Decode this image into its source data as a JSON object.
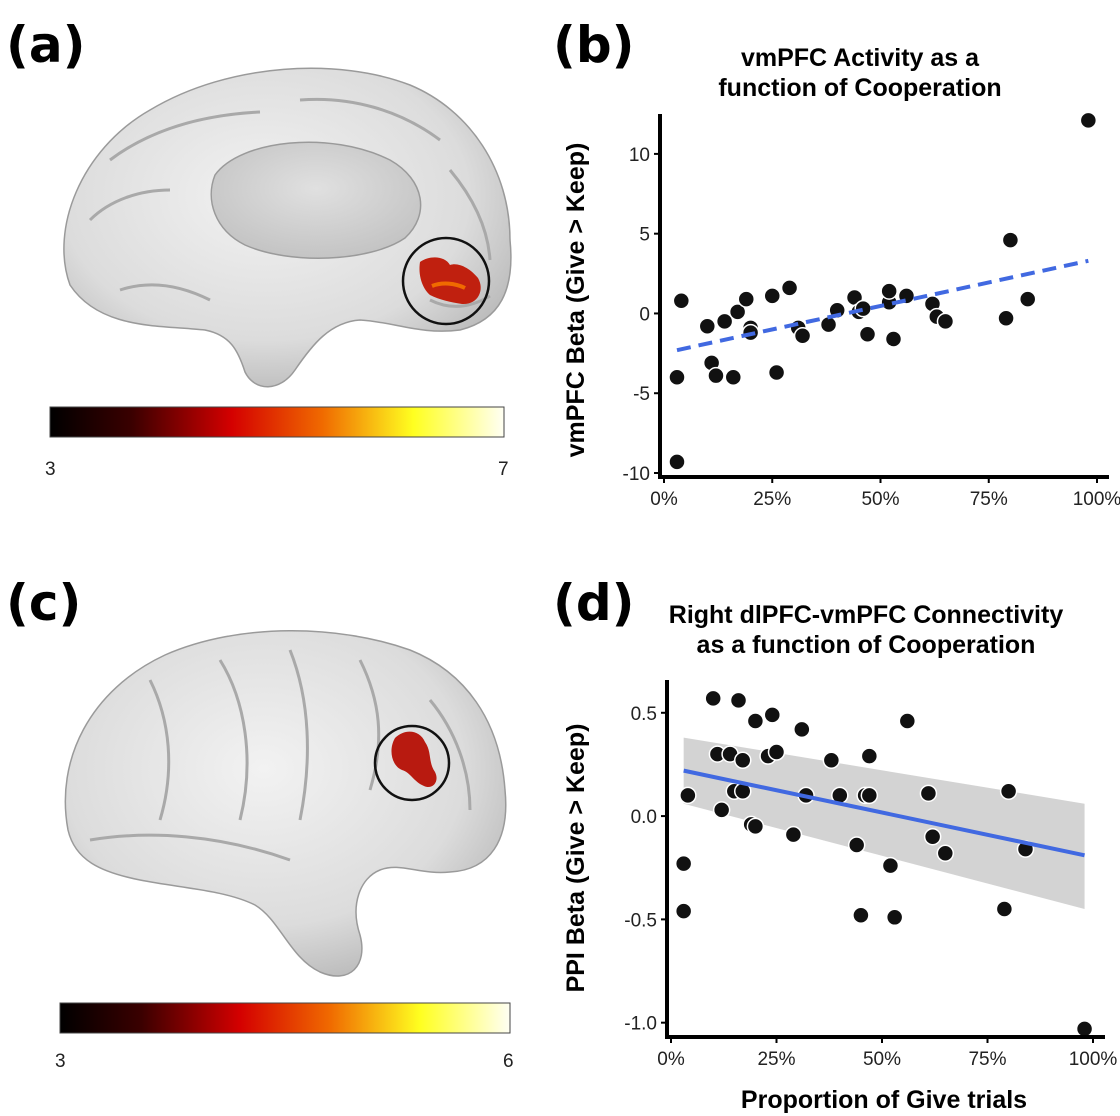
{
  "panels": {
    "a": {
      "letter": "(a)"
    },
    "b": {
      "letter": "(b)"
    },
    "c": {
      "letter": "(c)"
    },
    "d": {
      "letter": "(d)"
    }
  },
  "colorbars": [
    {
      "min_label": "3",
      "max_label": "7"
    },
    {
      "min_label": "3",
      "max_label": "6"
    }
  ],
  "colors": {
    "point_fill": "#111111",
    "point_stroke": "#ffffff",
    "trend_line": "#4169e1",
    "confidence_band": "#c8c8c8",
    "activation": "#c0200f"
  },
  "chart_data": [
    {
      "type": "scatter",
      "title_lines": [
        "vmPFC Activity as a",
        "function of Cooperation"
      ],
      "xlabel": "",
      "ylabel": "vmPFC Beta (Give > Keep)",
      "xlim": [
        0,
        1
      ],
      "ylim": [
        -10,
        12
      ],
      "xticks": [
        0,
        0.25,
        0.5,
        0.75,
        1.0
      ],
      "xtick_labels": [
        "0%",
        "25%",
        "50%",
        "75%",
        "100%"
      ],
      "yticks": [
        -10,
        -5,
        0,
        5,
        10
      ],
      "ytick_labels": [
        "-10",
        "-5",
        "0",
        "5",
        "10"
      ],
      "trend": {
        "style": "dashed",
        "x": [
          0.03,
          0.98
        ],
        "y": [
          -2.3,
          3.3
        ],
        "ci": false
      },
      "points": {
        "x": [
          0.03,
          0.04,
          0.03,
          0.1,
          0.11,
          0.12,
          0.14,
          0.16,
          0.17,
          0.19,
          0.2,
          0.2,
          0.25,
          0.26,
          0.29,
          0.31,
          0.32,
          0.38,
          0.4,
          0.44,
          0.45,
          0.46,
          0.47,
          0.52,
          0.52,
          0.53,
          0.56,
          0.62,
          0.63,
          0.65,
          0.79,
          0.8,
          0.84,
          0.98
        ],
        "y": [
          -4.0,
          0.8,
          -9.3,
          -0.8,
          -3.1,
          -3.9,
          -0.5,
          -4.0,
          0.1,
          0.9,
          -0.9,
          -1.2,
          1.1,
          -3.7,
          1.6,
          -0.9,
          -1.4,
          -0.7,
          0.2,
          1.0,
          0.1,
          0.3,
          -1.3,
          0.7,
          1.4,
          -1.6,
          1.1,
          0.6,
          -0.2,
          -0.5,
          -0.3,
          4.6,
          0.9,
          12.1
        ]
      }
    },
    {
      "type": "scatter",
      "title_lines": [
        "Right dlPFC-vmPFC Connectivity",
        "as a function of Cooperation"
      ],
      "xlabel": "Proportion of Give trials",
      "ylabel": "PPI Beta (Give > Keep)",
      "xlim": [
        0,
        1
      ],
      "ylim": [
        -1.05,
        0.62
      ],
      "xticks": [
        0,
        0.25,
        0.5,
        0.75,
        1.0
      ],
      "xtick_labels": [
        "0%",
        "25%",
        "50%",
        "75%",
        "100%"
      ],
      "yticks": [
        -1.0,
        -0.5,
        0.0,
        0.5
      ],
      "ytick_labels": [
        "-1.0",
        "-0.5",
        "0.0",
        "0.5"
      ],
      "trend": {
        "style": "solid",
        "x": [
          0.03,
          0.98
        ],
        "y": [
          0.22,
          -0.19
        ],
        "ci": true,
        "ci_upper": [
          0.38,
          0.06
        ],
        "ci_lower": [
          0.06,
          -0.45
        ]
      },
      "points": {
        "x": [
          0.03,
          0.03,
          0.04,
          0.1,
          0.11,
          0.12,
          0.14,
          0.15,
          0.16,
          0.17,
          0.17,
          0.19,
          0.2,
          0.2,
          0.23,
          0.24,
          0.25,
          0.29,
          0.31,
          0.32,
          0.38,
          0.4,
          0.44,
          0.45,
          0.46,
          0.47,
          0.47,
          0.52,
          0.53,
          0.56,
          0.61,
          0.62,
          0.65,
          0.79,
          0.8,
          0.84,
          0.98
        ],
        "y": [
          -0.23,
          -0.46,
          0.1,
          0.57,
          0.3,
          0.03,
          0.3,
          0.12,
          0.56,
          0.27,
          0.12,
          -0.04,
          -0.05,
          0.46,
          0.29,
          0.49,
          0.31,
          -0.09,
          0.42,
          0.1,
          0.27,
          0.1,
          -0.14,
          -0.48,
          0.1,
          0.29,
          0.1,
          -0.24,
          -0.49,
          0.46,
          0.11,
          -0.1,
          -0.18,
          -0.45,
          0.12,
          -0.16,
          -1.03
        ]
      }
    }
  ]
}
